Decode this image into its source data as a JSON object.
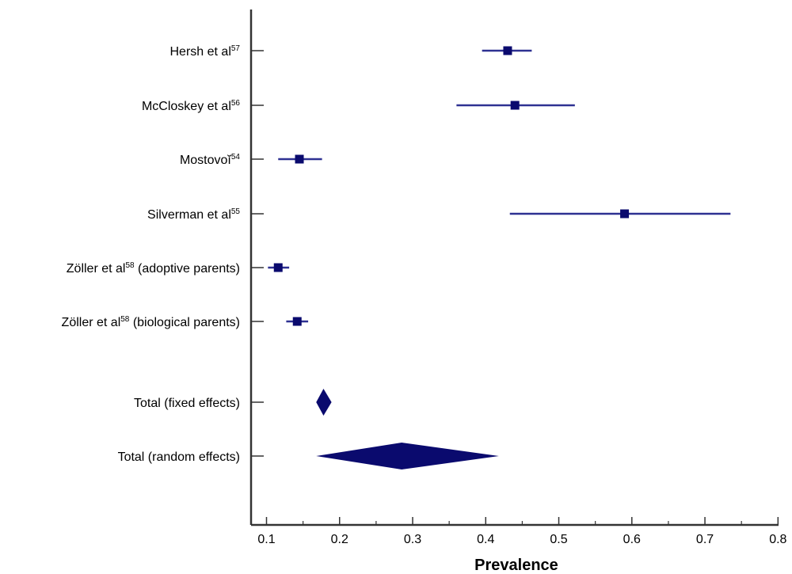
{
  "chart_data": {
    "type": "forest",
    "xlabel": "Prevalence",
    "xlim": [
      0.08,
      0.82
    ],
    "xticks": [
      0.1,
      0.2,
      0.3,
      0.4,
      0.5,
      0.6,
      0.7,
      0.8
    ],
    "xtick_labels": [
      "0.1",
      "0.2",
      "0.3",
      "0.4",
      "0.5",
      "0.6",
      "0.7",
      "0.8"
    ],
    "grid": false,
    "colors": {
      "marker": "#0a0a6e",
      "line": "#2e3192",
      "axis": "#333333"
    },
    "studies": [
      {
        "label": "Hersh et al",
        "sup": "57",
        "suffix": "",
        "estimate": 0.43,
        "lower": 0.395,
        "upper": 0.463
      },
      {
        "label": "McCloskey et al",
        "sup": "56",
        "suffix": "",
        "estimate": 0.44,
        "lower": 0.36,
        "upper": 0.522
      },
      {
        "label": "Mostovoĭ",
        "sup": "54",
        "suffix": "",
        "estimate": 0.145,
        "lower": 0.116,
        "upper": 0.176
      },
      {
        "label": "Silverman et al",
        "sup": "55",
        "suffix": "",
        "estimate": 0.59,
        "lower": 0.433,
        "upper": 0.735
      },
      {
        "label": "Zöller et al",
        "sup": "58",
        "suffix": " (adoptive parents)",
        "estimate": 0.116,
        "lower": 0.102,
        "upper": 0.131
      },
      {
        "label": "Zöller et al",
        "sup": "58",
        "suffix": " (biological parents)",
        "estimate": 0.142,
        "lower": 0.127,
        "upper": 0.157
      }
    ],
    "totals": [
      {
        "label": "Total (fixed effects)",
        "estimate": 0.178,
        "lower": 0.168,
        "upper": 0.189
      },
      {
        "label": "Total (random effects)",
        "estimate": 0.285,
        "lower": 0.168,
        "upper": 0.418
      }
    ]
  }
}
